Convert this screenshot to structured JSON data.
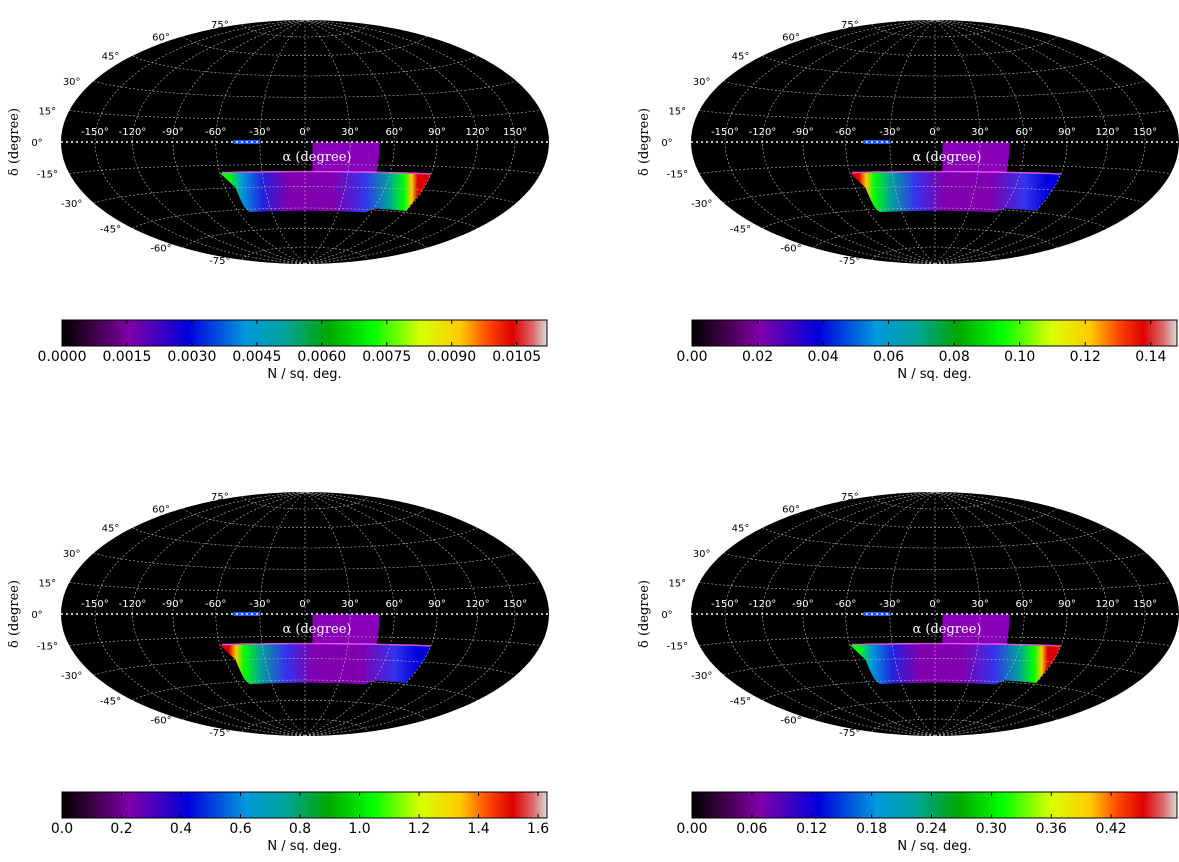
{
  "chart_data": [
    {
      "type": "heatmap",
      "projection": "Aitoff/Hammer all-sky",
      "xlabel": "α (degree)",
      "ylabel": "δ (degree)",
      "ra_ticks": [
        "-150°",
        "-120°",
        "-90°",
        "-60°",
        "-30°",
        "0°",
        "30°",
        "60°",
        "90°",
        "120°",
        "150°"
      ],
      "dec_ticks": [
        "75°",
        "60°",
        "45°",
        "30°",
        "15°",
        "0°",
        "-15°",
        "-30°",
        "-45°",
        "-60°",
        "-75°"
      ],
      "grid": true,
      "colorbar": {
        "label": "N / sq. deg.",
        "range": [
          0,
          0.0112
        ],
        "ticks": [
          "0.0000",
          "0.0015",
          "0.0030",
          "0.0045",
          "0.0060",
          "0.0075",
          "0.0090",
          "0.0105"
        ],
        "tick_values": [
          0,
          0.0015,
          0.003,
          0.0045,
          0.006,
          0.0075,
          0.009,
          0.0105
        ]
      },
      "hot_edge": "right"
    },
    {
      "type": "heatmap",
      "projection": "Aitoff/Hammer all-sky",
      "xlabel": "α (degree)",
      "ylabel": "δ (degree)",
      "ra_ticks": [
        "-150°",
        "-120°",
        "-90°",
        "-60°",
        "-30°",
        "0°",
        "30°",
        "60°",
        "90°",
        "120°",
        "150°"
      ],
      "dec_ticks": [
        "75°",
        "60°",
        "45°",
        "30°",
        "15°",
        "0°",
        "-15°",
        "-30°",
        "-45°",
        "-60°",
        "-75°"
      ],
      "grid": true,
      "colorbar": {
        "label": "N / sq. deg.",
        "range": [
          0,
          0.148
        ],
        "ticks": [
          "0.00",
          "0.02",
          "0.04",
          "0.06",
          "0.08",
          "0.10",
          "0.12",
          "0.14"
        ],
        "tick_values": [
          0,
          0.02,
          0.04,
          0.06,
          0.08,
          0.1,
          0.12,
          0.14
        ]
      },
      "hot_edge": "left"
    },
    {
      "type": "heatmap",
      "projection": "Aitoff/Hammer all-sky",
      "xlabel": "α (degree)",
      "ylabel": "δ (degree)",
      "ra_ticks": [
        "-150°",
        "-120°",
        "-90°",
        "-60°",
        "-30°",
        "0°",
        "30°",
        "60°",
        "90°",
        "120°",
        "150°"
      ],
      "dec_ticks": [
        "75°",
        "60°",
        "45°",
        "30°",
        "15°",
        "0°",
        "-15°",
        "-30°",
        "-45°",
        "-60°",
        "-75°"
      ],
      "grid": true,
      "colorbar": {
        "label": "N / sq. deg.",
        "range": [
          0,
          1.63
        ],
        "ticks": [
          "0.0",
          "0.2",
          "0.4",
          "0.6",
          "0.8",
          "1.0",
          "1.2",
          "1.4",
          "1.6"
        ],
        "tick_values": [
          0,
          0.2,
          0.4,
          0.6,
          0.8,
          1.0,
          1.2,
          1.4,
          1.6
        ]
      },
      "hot_edge": "left"
    },
    {
      "type": "heatmap",
      "projection": "Aitoff/Hammer all-sky",
      "xlabel": "α (degree)",
      "ylabel": "δ (degree)",
      "ra_ticks": [
        "-150°",
        "-120°",
        "-90°",
        "-60°",
        "-30°",
        "0°",
        "30°",
        "60°",
        "90°",
        "120°",
        "150°"
      ],
      "dec_ticks": [
        "75°",
        "60°",
        "45°",
        "30°",
        "15°",
        "0°",
        "-15°",
        "-30°",
        "-45°",
        "-60°",
        "-75°"
      ],
      "grid": true,
      "colorbar": {
        "label": "N / sq. deg.",
        "range": [
          0,
          0.486
        ],
        "ticks": [
          "0.00",
          "0.06",
          "0.12",
          "0.18",
          "0.24",
          "0.30",
          "0.36",
          "0.42"
        ],
        "tick_values": [
          0,
          0.06,
          0.12,
          0.18,
          0.24,
          0.3,
          0.36,
          0.42
        ]
      },
      "hot_edge": "right"
    }
  ]
}
